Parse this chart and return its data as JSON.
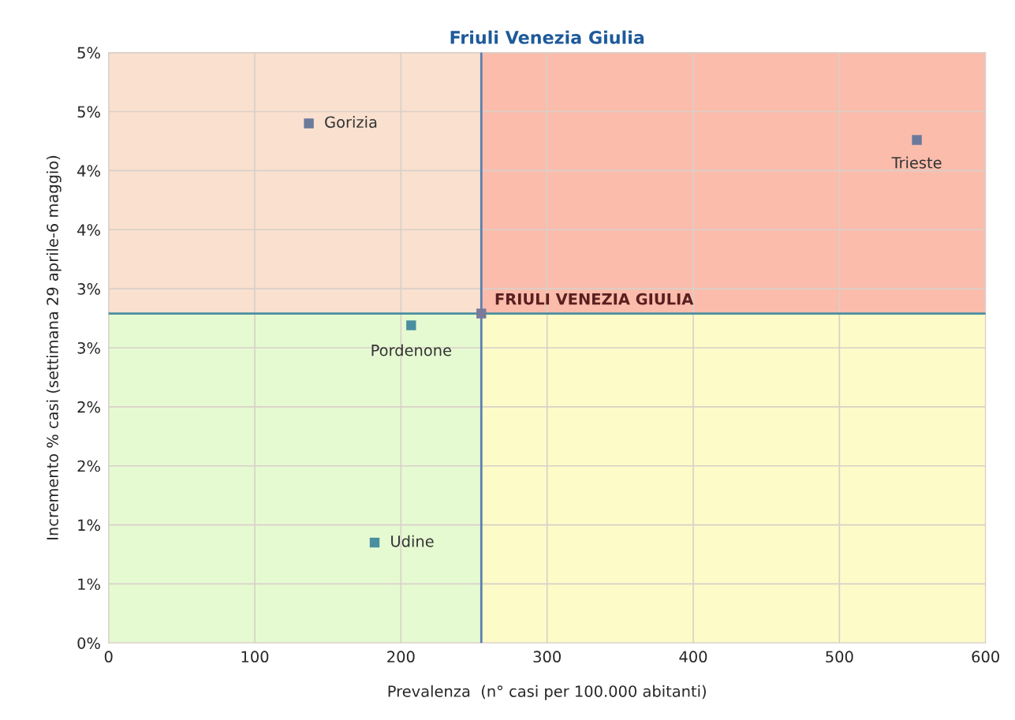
{
  "chart_data": {
    "type": "scatter",
    "title": "Friuli Venezia Giulia",
    "xlabel": "Prevalenza  (n° casi per 100.000 abitanti)",
    "ylabel": "Incremento % casi (settimana 29 aprile-6 maggio)",
    "xlim": [
      0,
      600
    ],
    "xticks": [
      0,
      100,
      200,
      300,
      400,
      500,
      600
    ],
    "ylim": [
      0,
      5
    ],
    "yticks": [
      {
        "value": 0,
        "label": "0%"
      },
      {
        "value": 0.5,
        "label": "1%"
      },
      {
        "value": 1,
        "label": "1%"
      },
      {
        "value": 1.5,
        "label": "2%"
      },
      {
        "value": 2,
        "label": "2%"
      },
      {
        "value": 2.5,
        "label": "3%"
      },
      {
        "value": 3,
        "label": "3%"
      },
      {
        "value": 3.5,
        "label": "4%"
      },
      {
        "value": 4,
        "label": "4%"
      },
      {
        "value": 4.5,
        "label": "5%"
      },
      {
        "value": 5,
        "label": "5%"
      }
    ],
    "grid": true,
    "marker": "square",
    "legend": false,
    "series": [
      {
        "color": "#6b7a9b",
        "x": [
          137,
          553
        ],
        "values": [
          4.4,
          4.26
        ]
      },
      {
        "color": "#4a8fa0",
        "x": [
          207,
          182
        ],
        "values": [
          2.69,
          0.85
        ]
      },
      {
        "color": "#7a7a9b",
        "x": [
          255
        ],
        "values": [
          2.79
        ]
      }
    ],
    "ref_lines": [
      {
        "axis": "x",
        "value": 255,
        "color": "#5b7fb0"
      },
      {
        "axis": "y",
        "value": 2.79,
        "color": "#4a8fa0"
      }
    ],
    "bands": [
      {
        "axis": "y",
        "from": 2.79,
        "to": 5,
        "color": "#f9e0cf"
      },
      {
        "axis": "y",
        "from": 0,
        "to": 2.79,
        "color": "#e6fad2"
      },
      {
        "axis": "x",
        "from": 255,
        "to": 600,
        "color": "#fbbcac"
      },
      {
        "axis": "x",
        "from": 255,
        "to": 600,
        "color": "#fdfcc8"
      }
    ],
    "annotations": [
      {
        "text": "Gorizia",
        "x": 137,
        "y": 4.4
      },
      {
        "text": "Trieste",
        "x": 553,
        "y": 4.26
      },
      {
        "text": "Pordenone",
        "x": 207,
        "y": 2.69
      },
      {
        "text": "Udine",
        "x": 182,
        "y": 0.85
      },
      {
        "text": "FRIULI VENEZIA GIULIA",
        "x": 255,
        "y": 2.79
      }
    ]
  }
}
